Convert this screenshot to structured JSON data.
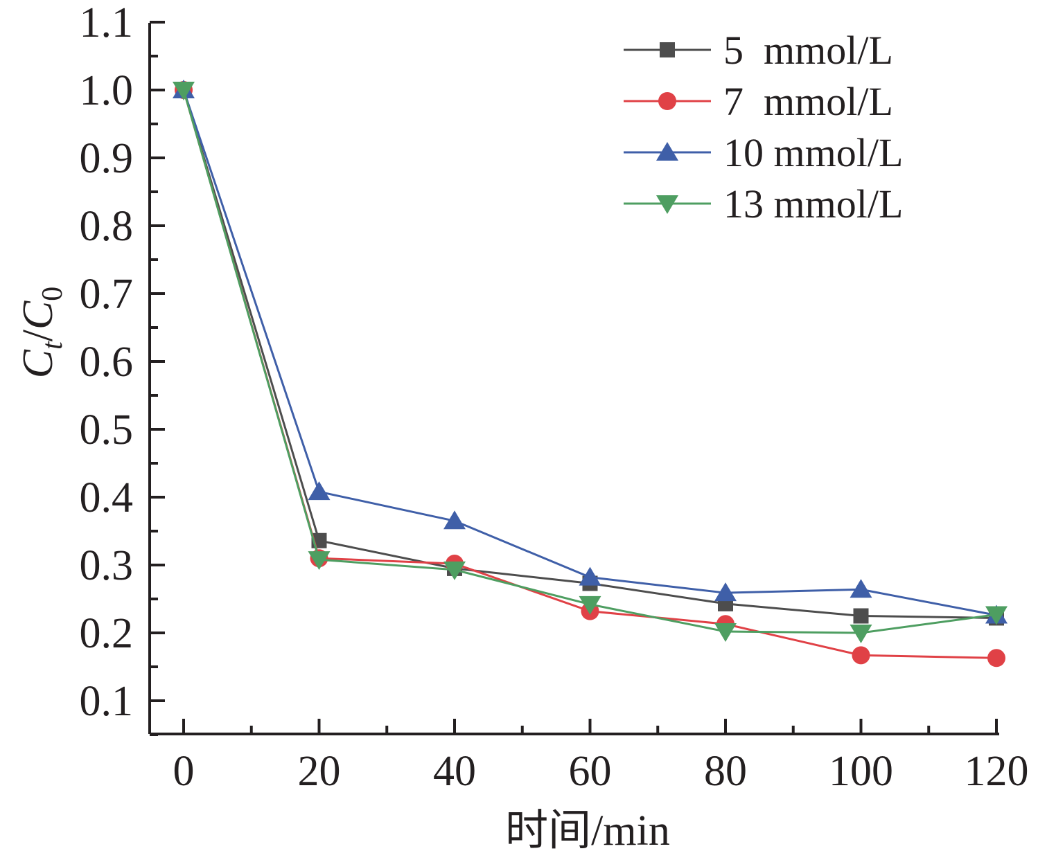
{
  "chart_data": {
    "type": "line",
    "title": "",
    "xlabel": "时间/min",
    "ylabel": {
      "main": "C",
      "sub1": "t",
      "slash": "/",
      "main2": "C",
      "sub2": "0"
    },
    "x": [
      0,
      20,
      40,
      60,
      80,
      100,
      120
    ],
    "x_ticks": [
      "0",
      "20",
      "40",
      "60",
      "80",
      "100",
      "120"
    ],
    "xlim": [
      -5,
      122
    ],
    "y_ticks": [
      "0.1",
      "0.2",
      "0.3",
      "0.4",
      "0.5",
      "0.6",
      "0.7",
      "0.8",
      "0.9",
      "1.0",
      "1.1"
    ],
    "ylim": [
      0.05,
      1.1
    ],
    "grid": false,
    "legend_position": "top-right",
    "series": [
      {
        "name": "5  mmol/L",
        "marker": "square",
        "color": "#4d4d4d",
        "values": [
          1.0,
          0.336,
          0.295,
          0.273,
          0.243,
          0.225,
          0.222
        ]
      },
      {
        "name": "7  mmol/L",
        "marker": "circle",
        "color": "#e04146",
        "values": [
          1.0,
          0.31,
          0.302,
          0.232,
          0.213,
          0.167,
          0.163
        ]
      },
      {
        "name": "10 mmol/L",
        "marker": "triangle-up",
        "color": "#3f5fa8",
        "values": [
          1.0,
          0.408,
          0.365,
          0.282,
          0.259,
          0.264,
          0.226
        ]
      },
      {
        "name": "13 mmol/L",
        "marker": "triangle-down",
        "color": "#4e9e61",
        "values": [
          1.0,
          0.308,
          0.293,
          0.242,
          0.202,
          0.2,
          0.227
        ]
      }
    ]
  }
}
